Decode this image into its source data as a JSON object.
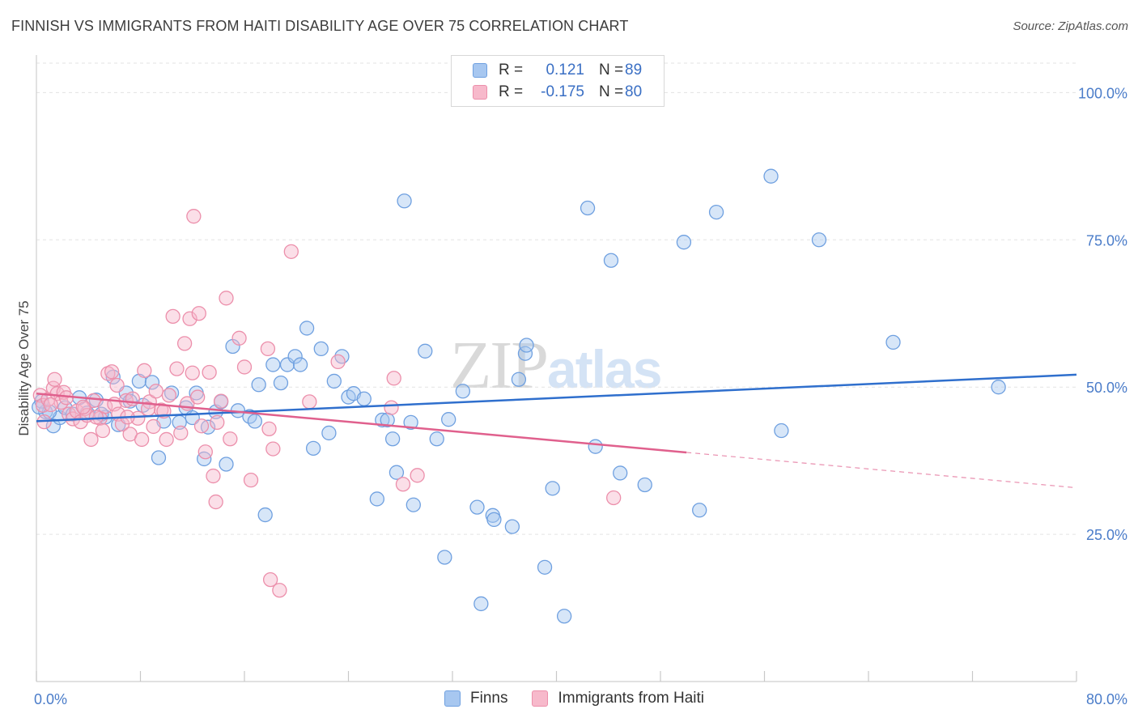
{
  "header": {
    "title": "FINNISH VS IMMIGRANTS FROM HAITI DISABILITY AGE OVER 75 CORRELATION CHART",
    "source": "Source: ZipAtlas.com"
  },
  "watermark": {
    "zip": "ZIP",
    "atlas": "atlas"
  },
  "legend": {
    "rows": [
      {
        "r_label": "R =",
        "r_value": "0.121",
        "n_label": "N =",
        "n_value": "89",
        "color": "#a7c7f0"
      },
      {
        "r_label": "R =",
        "r_value": "-0.175",
        "n_label": "N =",
        "n_value": "80",
        "color": "#f7b9cb"
      }
    ]
  },
  "bottom_legend": {
    "finns": "Finns",
    "haiti": "Immigrants from Haiti"
  },
  "chart_data": {
    "type": "scatter",
    "title": "FINNISH VS IMMIGRANTS FROM HAITI DISABILITY AGE OVER 75 CORRELATION CHART",
    "xlabel": "",
    "ylabel": "Disability Age Over 75",
    "xlim": [
      0,
      80
    ],
    "ylim": [
      0,
      105
    ],
    "x_tick_labels": [
      "0.0%",
      "80.0%"
    ],
    "y_ticks": [
      25,
      50,
      75,
      100
    ],
    "y_tick_labels": [
      "25.0%",
      "50.0%",
      "75.0%",
      "100.0%"
    ],
    "grid": true,
    "series": [
      {
        "name": "Finns",
        "color": "#6fa0e0",
        "fill": "#a7c7f0",
        "trend": {
          "x0": 0,
          "y0": 44.2,
          "x1": 80,
          "y1": 52.1,
          "color": "#2f6fcd"
        },
        "points": [
          [
            0.7,
            45.8
          ],
          [
            1.3,
            43.4
          ],
          [
            1.8,
            44.8
          ],
          [
            2.2,
            46.5
          ],
          [
            2.8,
            45.4
          ],
          [
            3.3,
            48.2
          ],
          [
            3.9,
            45.6
          ],
          [
            4.6,
            47.8
          ],
          [
            5.3,
            44.9
          ],
          [
            5.9,
            51.7
          ],
          [
            6.3,
            43.6
          ],
          [
            6.9,
            49.0
          ],
          [
            7.2,
            47.6
          ],
          [
            7.9,
            51.0
          ],
          [
            8.2,
            46.9
          ],
          [
            8.9,
            50.8
          ],
          [
            9.4,
            38.0
          ],
          [
            9.8,
            44.2
          ],
          [
            10.4,
            49.0
          ],
          [
            11.0,
            44.0
          ],
          [
            11.5,
            46.5
          ],
          [
            12.0,
            44.8
          ],
          [
            12.3,
            49.0
          ],
          [
            13.2,
            43.2
          ],
          [
            12.9,
            37.8
          ],
          [
            13.8,
            45.8
          ],
          [
            14.2,
            47.5
          ],
          [
            14.6,
            36.9
          ],
          [
            15.1,
            56.9
          ],
          [
            15.5,
            46.0
          ],
          [
            16.4,
            45.0
          ],
          [
            16.8,
            44.2
          ],
          [
            17.1,
            50.4
          ],
          [
            17.6,
            28.3
          ],
          [
            18.2,
            53.8
          ],
          [
            18.8,
            50.7
          ],
          [
            19.3,
            53.8
          ],
          [
            19.9,
            55.2
          ],
          [
            20.3,
            53.8
          ],
          [
            20.8,
            60.0
          ],
          [
            21.3,
            39.6
          ],
          [
            21.9,
            56.5
          ],
          [
            22.5,
            42.2
          ],
          [
            22.9,
            51.0
          ],
          [
            23.5,
            55.2
          ],
          [
            24.0,
            48.3
          ],
          [
            24.4,
            48.9
          ],
          [
            25.2,
            48.0
          ],
          [
            26.2,
            31.0
          ],
          [
            26.6,
            44.4
          ],
          [
            27.0,
            44.4
          ],
          [
            27.4,
            41.2
          ],
          [
            27.7,
            35.5
          ],
          [
            28.3,
            81.6
          ],
          [
            28.8,
            44.0
          ],
          [
            29.0,
            30.0
          ],
          [
            29.9,
            56.1
          ],
          [
            30.8,
            41.2
          ],
          [
            31.4,
            21.1
          ],
          [
            31.7,
            44.5
          ],
          [
            32.8,
            49.3
          ],
          [
            33.9,
            29.6
          ],
          [
            34.2,
            13.2
          ],
          [
            35.1,
            28.2
          ],
          [
            35.2,
            27.5
          ],
          [
            36.6,
            26.3
          ],
          [
            37.1,
            51.3
          ],
          [
            37.6,
            55.7
          ],
          [
            37.7,
            57.1
          ],
          [
            39.1,
            19.4
          ],
          [
            39.7,
            32.8
          ],
          [
            40.6,
            11.1
          ],
          [
            42.4,
            80.4
          ],
          [
            43.0,
            39.9
          ],
          [
            44.2,
            71.5
          ],
          [
            44.9,
            35.4
          ],
          [
            46.8,
            33.4
          ],
          [
            49.8,
            74.6
          ],
          [
            51.0,
            29.1
          ],
          [
            52.3,
            79.7
          ],
          [
            56.5,
            85.8
          ],
          [
            57.3,
            42.6
          ],
          [
            60.2,
            75.0
          ],
          [
            65.9,
            57.6
          ],
          [
            74.0,
            50.0
          ],
          [
            0.4,
            47.6
          ],
          [
            1.0,
            45.8
          ],
          [
            0.2,
            46.6
          ],
          [
            5.0,
            45.4
          ]
        ]
      },
      {
        "name": "Immigrants from Haiti",
        "color": "#ec8fab",
        "fill": "#f7b9cb",
        "trend": {
          "x0": 0,
          "y0": 48.9,
          "x1": 50,
          "y1": 38.9,
          "dash_x1": 80,
          "dash_y1": 32.9,
          "color": "#e0608d"
        },
        "points": [
          [
            0.3,
            48.6
          ],
          [
            0.5,
            46.9
          ],
          [
            0.9,
            47.9
          ],
          [
            1.3,
            49.8
          ],
          [
            1.4,
            51.3
          ],
          [
            1.6,
            48.9
          ],
          [
            1.9,
            47.4
          ],
          [
            2.1,
            49.1
          ],
          [
            2.5,
            45.4
          ],
          [
            2.8,
            44.6
          ],
          [
            3.1,
            45.9
          ],
          [
            3.4,
            44.1
          ],
          [
            3.7,
            46.3
          ],
          [
            3.9,
            45.2
          ],
          [
            4.2,
            41.1
          ],
          [
            4.4,
            47.7
          ],
          [
            4.9,
            44.7
          ],
          [
            5.3,
            46.7
          ],
          [
            5.5,
            52.3
          ],
          [
            5.8,
            52.6
          ],
          [
            6.0,
            47.1
          ],
          [
            6.3,
            45.4
          ],
          [
            6.6,
            43.7
          ],
          [
            6.9,
            47.7
          ],
          [
            7.2,
            42.0
          ],
          [
            7.4,
            48.0
          ],
          [
            7.8,
            44.7
          ],
          [
            8.1,
            41.1
          ],
          [
            8.3,
            52.8
          ],
          [
            8.7,
            47.5
          ],
          [
            9.0,
            43.3
          ],
          [
            9.2,
            49.3
          ],
          [
            9.6,
            46.1
          ],
          [
            10.0,
            41.1
          ],
          [
            10.2,
            48.6
          ],
          [
            10.5,
            62.0
          ],
          [
            10.8,
            53.1
          ],
          [
            11.1,
            42.2
          ],
          [
            11.4,
            57.4
          ],
          [
            11.6,
            47.2
          ],
          [
            11.8,
            61.6
          ],
          [
            12.0,
            52.4
          ],
          [
            12.1,
            79.0
          ],
          [
            12.5,
            62.5
          ],
          [
            12.7,
            43.4
          ],
          [
            13.0,
            39.0
          ],
          [
            13.3,
            52.5
          ],
          [
            13.6,
            34.9
          ],
          [
            13.8,
            30.5
          ],
          [
            14.2,
            47.6
          ],
          [
            14.6,
            65.1
          ],
          [
            14.9,
            41.2
          ],
          [
            15.6,
            58.3
          ],
          [
            16.0,
            53.4
          ],
          [
            16.5,
            34.2
          ],
          [
            17.8,
            56.5
          ],
          [
            17.9,
            42.9
          ],
          [
            18.0,
            17.3
          ],
          [
            18.2,
            39.5
          ],
          [
            18.7,
            15.5
          ],
          [
            19.6,
            73.0
          ],
          [
            21.0,
            47.5
          ],
          [
            23.2,
            54.3
          ],
          [
            27.5,
            51.5
          ],
          [
            27.3,
            46.5
          ],
          [
            28.2,
            33.5
          ],
          [
            29.3,
            35.0
          ],
          [
            44.4,
            31.2
          ],
          [
            0.6,
            44.1
          ],
          [
            1.1,
            47.0
          ],
          [
            2.3,
            48.2
          ],
          [
            3.6,
            46.6
          ],
          [
            4.6,
            44.9
          ],
          [
            5.1,
            42.6
          ],
          [
            6.2,
            50.3
          ],
          [
            7.0,
            44.9
          ],
          [
            8.6,
            46.3
          ],
          [
            9.8,
            45.9
          ],
          [
            12.4,
            48.3
          ],
          [
            13.9,
            44.0
          ]
        ]
      }
    ]
  }
}
